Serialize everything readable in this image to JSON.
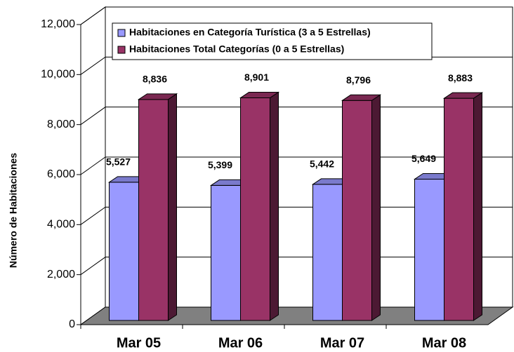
{
  "chart_data": {
    "type": "bar3d",
    "y_label": "Número de Habitaciones",
    "categories": [
      "Mar 05",
      "Mar 06",
      "Mar 07",
      "Mar 08"
    ],
    "series": [
      {
        "name": "Habitaciones en Categoría Turística (3 a 5 Estrellas)",
        "color": "#9999ff",
        "values": [
          5527,
          5399,
          5442,
          5649
        ],
        "value_labels": [
          "5,527",
          "5,399",
          "5,442",
          "5,649"
        ]
      },
      {
        "name": "Habitaciones Total Categorías (0 a 5 Estrellas)",
        "color": "#993366",
        "values": [
          8836,
          8901,
          8796,
          8883
        ],
        "value_labels": [
          "8,836",
          "8,901",
          "8,796",
          "8,883"
        ]
      }
    ],
    "ylim": [
      0,
      12000
    ],
    "yticks": [
      0,
      {
        "value": 2000,
        "label": "2,000"
      },
      {
        "value": 4000,
        "label": "4,000"
      },
      {
        "value": 6000,
        "label": "6,000"
      },
      {
        "value": 8000,
        "label": "8,000"
      },
      {
        "value": 10000,
        "label": "10,000"
      },
      {
        "value": 12000,
        "label": "12,000"
      }
    ],
    "grid": true
  }
}
